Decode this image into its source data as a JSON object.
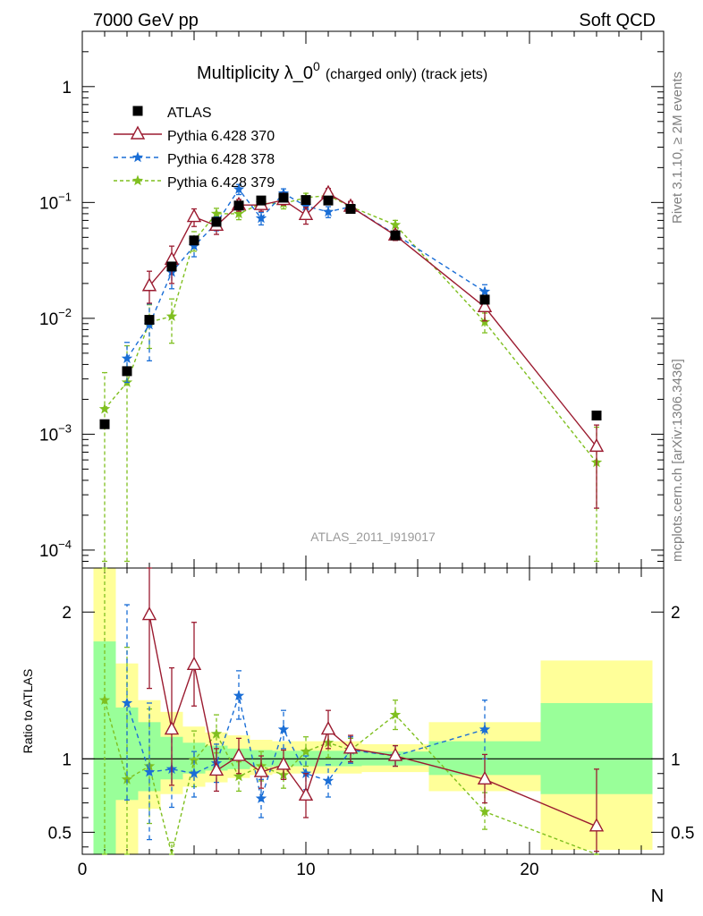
{
  "header": {
    "left": "7000 GeV pp",
    "right": "Soft QCD"
  },
  "side_labels": {
    "top": "Rivet 3.1.10, ≥ 2M events",
    "bottom": "mcplots.cern.ch [arXiv:1306.3436]"
  },
  "analysis_id": "ATLAS_2011_I919017",
  "chart_data": [
    {
      "type": "scatter",
      "title": "Multiplicity λ_0",
      "title_sup": "0",
      "title_suffix": "(charged only) (track jets)",
      "yscale": "log",
      "ylim": [
        7e-05,
        3
      ],
      "xlim": [
        0,
        26
      ],
      "yticks": [
        0.0001,
        0.001,
        0.01,
        0.1,
        1
      ],
      "ytick_labels": [
        {
          "base": "10",
          "exp": "−4"
        },
        {
          "base": "10",
          "exp": "−3"
        },
        {
          "base": "10",
          "exp": "−2"
        },
        {
          "base": "10",
          "exp": "−1"
        },
        {
          "base": "1",
          "exp": ""
        }
      ],
      "legend_position": "top-left",
      "series": [
        {
          "name": "ATLAS",
          "color": "#000000",
          "marker": "square",
          "x": [
            1,
            2,
            3,
            4,
            5,
            6,
            7,
            8,
            9,
            10,
            11,
            12,
            14,
            18,
            23
          ],
          "y": [
            0.00122,
            0.0035,
            0.0097,
            0.028,
            0.047,
            0.068,
            0.094,
            0.104,
            0.11,
            0.105,
            0.104,
            0.088,
            0.052,
            0.0145,
            0.00145
          ]
        },
        {
          "name": "Pythia 6.428 370",
          "color": "#9b1b30",
          "marker": "triangle",
          "dash": "",
          "x": [
            3,
            4,
            5,
            6,
            7,
            8,
            9,
            10,
            11,
            12,
            14,
            18,
            23
          ],
          "y": [
            0.019,
            0.032,
            0.075,
            0.063,
            0.095,
            0.095,
            0.105,
            0.078,
            0.12,
            0.092,
            0.052,
            0.0125,
            0.00078
          ],
          "err_lo": [
            0.0135,
            0.02,
            0.062,
            0.053,
            0.084,
            0.084,
            0.095,
            0.065,
            0.108,
            0.082,
            0.047,
            0.0095,
            0.00023
          ],
          "err_hi": [
            0.0255,
            0.042,
            0.088,
            0.073,
            0.106,
            0.106,
            0.115,
            0.091,
            0.132,
            0.102,
            0.057,
            0.0155,
            0.0012
          ]
        },
        {
          "name": "Pythia 6.428 378",
          "color": "#1a6ed6",
          "marker": "star",
          "dash": "5,4",
          "x": [
            2,
            3,
            4,
            5,
            6,
            7,
            8,
            9,
            10,
            11,
            12,
            14,
            18
          ],
          "y": [
            0.0045,
            0.0088,
            0.025,
            0.042,
            0.066,
            0.13,
            0.073,
            0.12,
            0.093,
            0.083,
            0.092,
            0.053,
            0.017
          ],
          "err_lo": [
            0.0028,
            0.0043,
            0.018,
            0.034,
            0.057,
            0.117,
            0.064,
            0.109,
            0.083,
            0.074,
            0.084,
            0.049,
            0.0145
          ],
          "err_hi": [
            0.0062,
            0.0133,
            0.032,
            0.05,
            0.075,
            0.143,
            0.082,
            0.131,
            0.103,
            0.092,
            0.1,
            0.057,
            0.0195
          ]
        },
        {
          "name": "Pythia 6.428 379",
          "color": "#7fbf1f",
          "marker": "star",
          "dash": "4,3",
          "x": [
            1,
            2,
            3,
            4,
            5,
            6,
            7,
            8,
            9,
            10,
            11,
            12,
            14,
            18,
            23
          ],
          "y": [
            0.00165,
            0.0028,
            0.0093,
            0.0104,
            0.047,
            0.08,
            0.08,
            0.098,
            0.098,
            0.11,
            0.115,
            0.092,
            0.064,
            0.0093,
            0.00057
          ],
          "err_lo": [
            8e-05,
            8e-05,
            0.0055,
            0.0061,
            0.038,
            0.071,
            0.071,
            0.088,
            0.088,
            0.1,
            0.105,
            0.084,
            0.058,
            0.0075,
            8e-05
          ],
          "err_hi": [
            0.0034,
            0.0058,
            0.0131,
            0.0147,
            0.056,
            0.089,
            0.089,
            0.108,
            0.108,
            0.12,
            0.125,
            0.1,
            0.07,
            0.0111,
            0.00115
          ]
        }
      ]
    },
    {
      "type": "scatter",
      "ylabel": "Ratio to ATLAS",
      "xlabel": "N",
      "xlim": [
        0,
        26
      ],
      "ylim": [
        0.35,
        2.3
      ],
      "xticks": [
        0,
        10,
        20
      ],
      "yticks": [
        0.5,
        1,
        2
      ],
      "ytick_labels": [
        "0.5",
        "1",
        "2"
      ],
      "reference_line": 1,
      "bands": [
        {
          "x0": 0.5,
          "x1": 1.5,
          "outer": [
            0.35,
            2.3
          ],
          "inner": [
            0.35,
            1.8
          ]
        },
        {
          "x0": 1.5,
          "x1": 2.5,
          "outer": [
            0.35,
            1.65
          ],
          "inner": [
            0.72,
            1.35
          ]
        },
        {
          "x0": 2.5,
          "x1": 3.5,
          "outer": [
            0.66,
            1.4
          ],
          "inner": [
            0.78,
            1.25
          ]
        },
        {
          "x0": 3.5,
          "x1": 4.5,
          "outer": [
            0.76,
            1.32
          ],
          "inner": [
            0.86,
            1.15
          ]
        },
        {
          "x0": 4.5,
          "x1": 5.5,
          "outer": [
            0.81,
            1.22
          ],
          "inner": [
            0.9,
            1.11
          ]
        },
        {
          "x0": 5.5,
          "x1": 6.5,
          "outer": [
            0.84,
            1.18
          ],
          "inner": [
            0.92,
            1.09
          ]
        },
        {
          "x0": 6.5,
          "x1": 7.5,
          "outer": [
            0.87,
            1.16
          ],
          "inner": [
            0.93,
            1.07
          ]
        },
        {
          "x0": 7.5,
          "x1": 8.5,
          "outer": [
            0.89,
            1.13
          ],
          "inner": [
            0.945,
            1.06
          ]
        },
        {
          "x0": 8.5,
          "x1": 9.5,
          "outer": [
            0.9,
            1.12
          ],
          "inner": [
            0.95,
            1.055
          ]
        },
        {
          "x0": 9.5,
          "x1": 10.5,
          "outer": [
            0.9,
            1.12
          ],
          "inner": [
            0.95,
            1.055
          ]
        },
        {
          "x0": 10.5,
          "x1": 11.5,
          "outer": [
            0.9,
            1.12
          ],
          "inner": [
            0.95,
            1.055
          ]
        },
        {
          "x0": 11.5,
          "x1": 12.5,
          "outer": [
            0.9,
            1.12
          ],
          "inner": [
            0.95,
            1.055
          ]
        },
        {
          "x0": 12.5,
          "x1": 15.5,
          "outer": [
            0.91,
            1.1
          ],
          "inner": [
            0.955,
            1.05
          ]
        },
        {
          "x0": 15.5,
          "x1": 20.5,
          "outer": [
            0.78,
            1.25
          ],
          "inner": [
            0.89,
            1.12
          ]
        },
        {
          "x0": 20.5,
          "x1": 25.5,
          "outer": [
            0.38,
            1.67
          ],
          "inner": [
            0.76,
            1.38
          ]
        }
      ],
      "series": [
        {
          "name": "Pythia 6.428 370",
          "color": "#9b1b30",
          "marker": "triangle",
          "dash": "",
          "x": [
            3,
            4,
            5,
            6,
            7,
            8,
            9,
            10,
            11,
            12,
            14,
            18,
            23
          ],
          "y": [
            1.98,
            1.2,
            1.64,
            0.92,
            1.02,
            0.91,
            0.96,
            0.75,
            1.2,
            1.07,
            1.02,
            0.86,
            0.54
          ],
          "err_lo": [
            1.48,
            0.82,
            1.36,
            0.78,
            0.9,
            0.8,
            0.86,
            0.6,
            1.07,
            0.98,
            0.95,
            0.7,
            0.37
          ],
          "err_hi": [
            2.3,
            1.62,
            1.93,
            1.07,
            1.14,
            1.02,
            1.06,
            0.9,
            1.33,
            1.16,
            1.09,
            1.03,
            0.93
          ]
        },
        {
          "name": "Pythia 6.428 378",
          "color": "#1a6ed6",
          "marker": "star",
          "dash": "5,4",
          "x": [
            2,
            3,
            4,
            5,
            6,
            7,
            8,
            9,
            10,
            11,
            12,
            14,
            18
          ],
          "y": [
            1.38,
            0.91,
            0.93,
            0.9,
            0.97,
            1.43,
            0.73,
            1.2,
            0.9,
            0.85,
            1.06,
            1.02,
            1.2
          ],
          "err_lo": [
            0.72,
            0.45,
            0.67,
            0.74,
            0.84,
            1.27,
            0.6,
            1.07,
            0.79,
            0.74,
            0.97,
            0.95,
            1.0
          ],
          "err_hi": [
            2.05,
            1.38,
            1.2,
            1.05,
            1.1,
            1.6,
            0.86,
            1.33,
            1.02,
            0.96,
            1.15,
            1.09,
            1.4
          ]
        },
        {
          "name": "Pythia 6.428 379",
          "color": "#7fbf1f",
          "marker": "star",
          "dash": "4,3",
          "x": [
            1,
            2,
            3,
            4,
            5,
            6,
            7,
            8,
            9,
            10,
            11,
            12,
            14,
            18,
            23
          ],
          "y": [
            1.4,
            0.86,
            0.95,
            0.3,
            0.99,
            1.17,
            0.88,
            0.95,
            0.89,
            1.05,
            1.11,
            1.06,
            1.3,
            0.64,
            0.3
          ],
          "err_lo": [
            0.35,
            0.35,
            0.56,
            0.35,
            0.81,
            1.04,
            0.78,
            0.85,
            0.8,
            0.95,
            1.01,
            0.98,
            1.2,
            0.52,
            0.35
          ],
          "err_hi": [
            2.3,
            1.76,
            1.34,
            0.43,
            1.19,
            1.3,
            0.98,
            1.05,
            0.98,
            1.15,
            1.21,
            1.14,
            1.4,
            0.77,
            0.35
          ]
        }
      ]
    }
  ]
}
